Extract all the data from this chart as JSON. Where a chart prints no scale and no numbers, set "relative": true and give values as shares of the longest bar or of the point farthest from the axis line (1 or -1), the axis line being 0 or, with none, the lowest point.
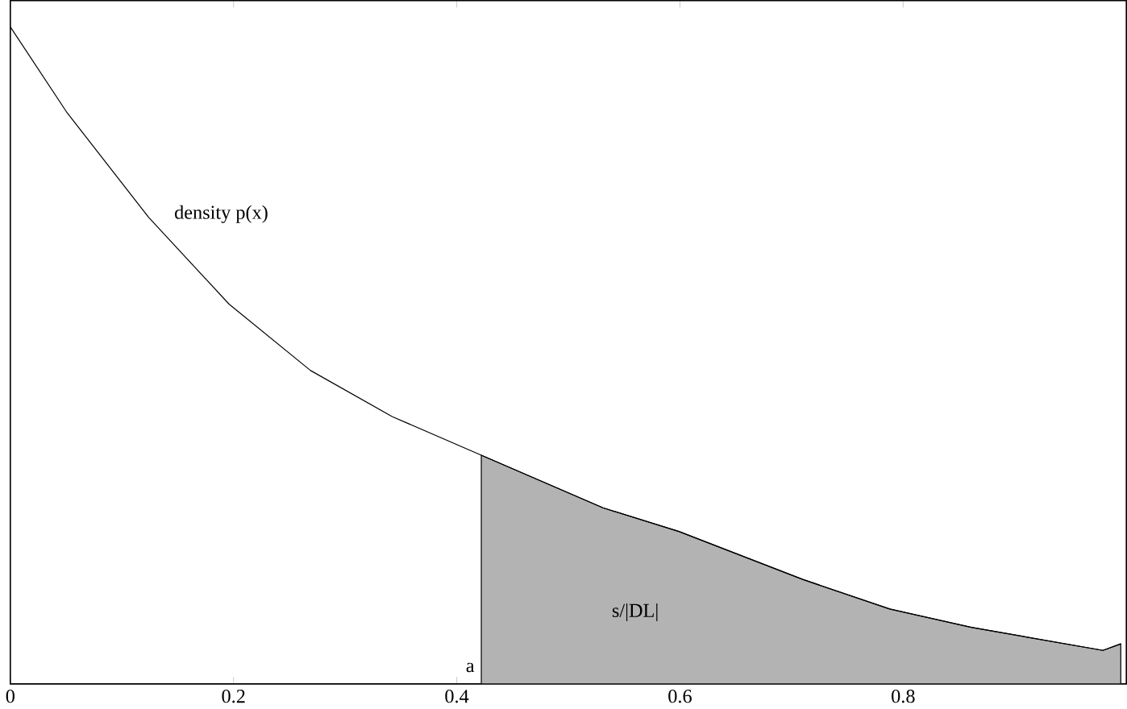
{
  "chart_data": {
    "type": "line",
    "relative": true,
    "xlim": [
      0,
      1
    ],
    "xticks": [
      0,
      0.2,
      0.4,
      0.6,
      0.8
    ],
    "series": [
      {
        "type": "area",
        "color": "#b3b3b3",
        "x": [
          0.422,
          0.531,
          0.599,
          0.71,
          0.788,
          0.861,
          0.979,
          0.995
        ],
        "values": [
          0.348,
          0.268,
          0.232,
          0.159,
          0.114,
          0.086,
          0.051,
          0.061
        ]
      },
      {
        "color": "#000000",
        "x": [
          0,
          0.051,
          0.124,
          0.196,
          0.269,
          0.342,
          0.422,
          0.531,
          0.599,
          0.71,
          0.788,
          0.861,
          0.979,
          0.995
        ],
        "values": [
          1,
          0.869,
          0.71,
          0.578,
          0.477,
          0.407,
          0.348,
          0.268,
          0.232,
          0.159,
          0.114,
          0.086,
          0.051,
          0.061
        ]
      }
    ],
    "annotations": [
      "density p(x)",
      "s/|DL|",
      "a"
    ]
  }
}
